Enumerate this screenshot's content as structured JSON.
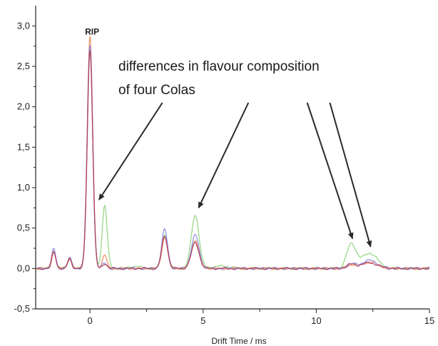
{
  "chart_data": {
    "type": "line",
    "title": "",
    "xlabel": "Drift Time / ms",
    "ylabel": "",
    "xlim": [
      -2.4,
      15
    ],
    "ylim": [
      -0.5,
      3.25
    ],
    "x_ticks": [
      0,
      5,
      10,
      15
    ],
    "x_tick_labels": [
      "0",
      "5",
      "10",
      "15"
    ],
    "y_ticks": [
      -0.5,
      0.0,
      0.5,
      1.0,
      1.5,
      2.0,
      2.5,
      3.0
    ],
    "y_tick_labels": [
      "-0,5",
      "0,0",
      "0,5",
      "1,0",
      "1,5",
      "2,0",
      "2,5",
      "3,0"
    ],
    "grid": false,
    "legend": "none",
    "peak_label": {
      "text": "RIP",
      "x": 0.0,
      "y": 3.0
    },
    "annotation": {
      "lines": [
        "differences in flavour composition",
        "of four Colas"
      ],
      "arrows": [
        {
          "from": [
            3.2,
            2.05
          ],
          "to": [
            0.4,
            0.85
          ]
        },
        {
          "from": [
            7.0,
            2.05
          ],
          "to": [
            4.8,
            0.75
          ]
        },
        {
          "from": [
            9.6,
            2.05
          ],
          "to": [
            11.6,
            0.37
          ]
        },
        {
          "from": [
            10.6,
            2.05
          ],
          "to": [
            12.4,
            0.27
          ]
        }
      ]
    },
    "series": [
      {
        "color": "#8fd47a",
        "baseline": 0.0,
        "peaks": [
          {
            "x": -1.6,
            "h": 0.22,
            "w": 0.09
          },
          {
            "x": -0.9,
            "h": 0.13,
            "w": 0.09
          },
          {
            "x": 0.0,
            "h": 2.74,
            "w": 0.12
          },
          {
            "x": 0.65,
            "h": 0.78,
            "w": 0.11
          },
          {
            "x": 2.0,
            "h": 0.03,
            "w": 0.2
          },
          {
            "x": 3.3,
            "h": 0.42,
            "w": 0.13
          },
          {
            "x": 4.65,
            "h": 0.66,
            "w": 0.17
          },
          {
            "x": 5.8,
            "h": 0.03,
            "w": 0.4
          },
          {
            "x": 11.55,
            "h": 0.3,
            "w": 0.2
          },
          {
            "x": 12.35,
            "h": 0.19,
            "w": 0.35
          }
        ]
      },
      {
        "color": "#f08a5a",
        "baseline": 0.0,
        "peaks": [
          {
            "x": -1.6,
            "h": 0.2,
            "w": 0.09
          },
          {
            "x": -0.9,
            "h": 0.12,
            "w": 0.09
          },
          {
            "x": 0.0,
            "h": 2.86,
            "w": 0.12
          },
          {
            "x": 0.65,
            "h": 0.16,
            "w": 0.1
          },
          {
            "x": 3.3,
            "h": 0.38,
            "w": 0.13
          },
          {
            "x": 4.65,
            "h": 0.34,
            "w": 0.17
          },
          {
            "x": 11.55,
            "h": 0.04,
            "w": 0.2
          },
          {
            "x": 12.35,
            "h": 0.08,
            "w": 0.35
          }
        ]
      },
      {
        "color": "#8a8ae0",
        "baseline": 0.0,
        "peaks": [
          {
            "x": -1.6,
            "h": 0.24,
            "w": 0.09
          },
          {
            "x": -0.9,
            "h": 0.13,
            "w": 0.09
          },
          {
            "x": 0.0,
            "h": 2.76,
            "w": 0.12
          },
          {
            "x": 0.65,
            "h": 0.07,
            "w": 0.1
          },
          {
            "x": 3.3,
            "h": 0.48,
            "w": 0.13
          },
          {
            "x": 4.65,
            "h": 0.41,
            "w": 0.17
          },
          {
            "x": 11.55,
            "h": 0.05,
            "w": 0.2
          },
          {
            "x": 12.35,
            "h": 0.1,
            "w": 0.35
          }
        ]
      },
      {
        "color": "#b03a5a",
        "baseline": 0.0,
        "peaks": [
          {
            "x": -1.6,
            "h": 0.21,
            "w": 0.09
          },
          {
            "x": -0.9,
            "h": 0.12,
            "w": 0.09
          },
          {
            "x": 0.0,
            "h": 2.7,
            "w": 0.12
          },
          {
            "x": 0.65,
            "h": 0.06,
            "w": 0.1
          },
          {
            "x": 3.3,
            "h": 0.4,
            "w": 0.13
          },
          {
            "x": 4.65,
            "h": 0.32,
            "w": 0.17
          },
          {
            "x": 11.55,
            "h": 0.05,
            "w": 0.2
          },
          {
            "x": 12.35,
            "h": 0.07,
            "w": 0.35
          }
        ]
      }
    ]
  }
}
